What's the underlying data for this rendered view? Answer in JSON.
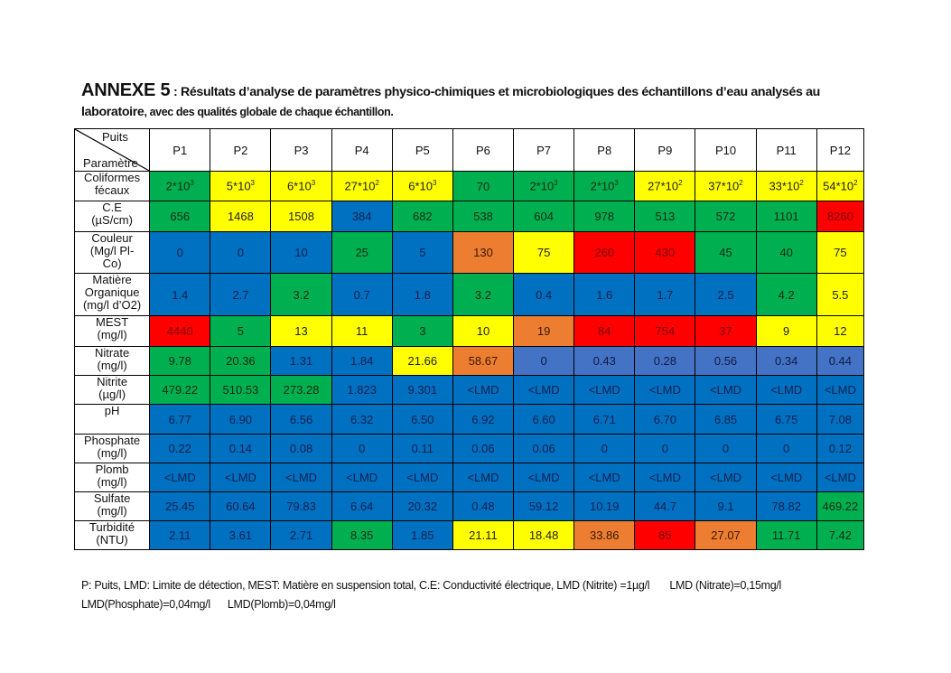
{
  "title": {
    "annex": "ANNEXE 5",
    "text": " : Résultats d’analyse de paramètres physico-chimiques et microbiologiques des échantillons d’eau analysés au",
    "line2_bold": "laboratoire",
    "line2_rest": ", avec des qualités globale de chaque échantillon."
  },
  "table": {
    "corner_top": "Puits",
    "corner_bottom": "Paramètre",
    "columns": [
      "P1",
      "P2",
      "P3",
      "P4",
      "P5",
      "P6",
      "P7",
      "P8",
      "P9",
      "P10",
      "P11",
      "P12"
    ],
    "colors": {
      "g": "#00b050",
      "y": "#ffff00",
      "b": "#0070c0",
      "l": "#4472c4",
      "r": "#ff0000",
      "o": "#ed7d31"
    },
    "rows": [
      {
        "label": "Coliformes\nfécaux",
        "h": 33,
        "cells": [
          {
            "v": "2*10",
            "sup": "3",
            "c": "g"
          },
          {
            "v": "5*10",
            "sup": "3",
            "c": "y"
          },
          {
            "v": "6*10",
            "sup": "3",
            "c": "y"
          },
          {
            "v": "27*10",
            "sup": "2",
            "c": "y"
          },
          {
            "v": "6*10",
            "sup": "3",
            "c": "y"
          },
          {
            "v": "70",
            "c": "g"
          },
          {
            "v": "2*10",
            "sup": "3",
            "c": "g"
          },
          {
            "v": "2*10",
            "sup": "3",
            "c": "g"
          },
          {
            "v": "27*10",
            "sup": "2",
            "c": "y"
          },
          {
            "v": "37*10",
            "sup": "2",
            "c": "y"
          },
          {
            "v": "33*10",
            "sup": "2",
            "c": "y"
          },
          {
            "v": "54*10",
            "sup": "2",
            "c": "y"
          }
        ]
      },
      {
        "label": "C.E\n(µS/cm)",
        "h": 34,
        "cells": [
          {
            "v": "656",
            "c": "g"
          },
          {
            "v": "1468",
            "c": "y"
          },
          {
            "v": "1508",
            "c": "y"
          },
          {
            "v": "384",
            "c": "b"
          },
          {
            "v": "682",
            "c": "g"
          },
          {
            "v": "538",
            "c": "g"
          },
          {
            "v": "604",
            "c": "g"
          },
          {
            "v": "978",
            "c": "g"
          },
          {
            "v": "513",
            "c": "g"
          },
          {
            "v": "572",
            "c": "g"
          },
          {
            "v": "1101",
            "c": "g"
          },
          {
            "v": "8260",
            "c": "r"
          }
        ]
      },
      {
        "label": "Couleur\n(Mg/l  Pl-\nCo)",
        "h": 46,
        "cells": [
          {
            "v": "0",
            "c": "b"
          },
          {
            "v": "0",
            "c": "b"
          },
          {
            "v": "10",
            "c": "b"
          },
          {
            "v": "25",
            "c": "g"
          },
          {
            "v": "5",
            "c": "b"
          },
          {
            "v": "130",
            "c": "o"
          },
          {
            "v": "75",
            "c": "y"
          },
          {
            "v": "260",
            "c": "r"
          },
          {
            "v": "430",
            "c": "r"
          },
          {
            "v": "45",
            "c": "g"
          },
          {
            "v": "40",
            "c": "g"
          },
          {
            "v": "75",
            "c": "y"
          }
        ]
      },
      {
        "label": "Matière\nOrganique\n(mg/l d’O2)",
        "h": 47,
        "cells": [
          {
            "v": "1.4",
            "c": "b"
          },
          {
            "v": "2.7",
            "c": "b"
          },
          {
            "v": "3.2",
            "c": "g"
          },
          {
            "v": "0.7",
            "c": "b"
          },
          {
            "v": "1.8",
            "c": "b"
          },
          {
            "v": "3.2",
            "c": "g"
          },
          {
            "v": "0.4",
            "c": "b"
          },
          {
            "v": "1.6",
            "c": "b"
          },
          {
            "v": "1.7",
            "c": "b"
          },
          {
            "v": "2.5",
            "c": "b"
          },
          {
            "v": "4.2",
            "c": "g"
          },
          {
            "v": "5.5",
            "c": "y"
          }
        ]
      },
      {
        "label": "MEST\n(mg/l)",
        "h": 34,
        "cells": [
          {
            "v": "4440",
            "c": "r"
          },
          {
            "v": "5",
            "c": "g"
          },
          {
            "v": "13",
            "c": "y"
          },
          {
            "v": "11",
            "c": "y"
          },
          {
            "v": "3",
            "c": "g"
          },
          {
            "v": "10",
            "c": "y"
          },
          {
            "v": "19",
            "c": "o"
          },
          {
            "v": "84",
            "c": "r"
          },
          {
            "v": "754",
            "c": "r"
          },
          {
            "v": "37",
            "c": "r"
          },
          {
            "v": "9",
            "c": "y"
          },
          {
            "v": "12",
            "c": "y"
          }
        ]
      },
      {
        "label": "Nitrate\n(mg/l)",
        "h": 32,
        "cells": [
          {
            "v": "9.78",
            "c": "g"
          },
          {
            "v": "20.36",
            "c": "g"
          },
          {
            "v": "1.31",
            "c": "b"
          },
          {
            "v": "1.84",
            "c": "b"
          },
          {
            "v": "21.66",
            "c": "y"
          },
          {
            "v": "58.67",
            "c": "o"
          },
          {
            "v": "0",
            "c": "l"
          },
          {
            "v": "0.43",
            "c": "l"
          },
          {
            "v": "0.28",
            "c": "l"
          },
          {
            "v": "0.56",
            "c": "l"
          },
          {
            "v": "0.34",
            "c": "l"
          },
          {
            "v": "0.44",
            "c": "l"
          }
        ]
      },
      {
        "label": "Nitrite\n(µg/l)",
        "h": 32,
        "cells": [
          {
            "v": "479.22",
            "c": "g"
          },
          {
            "v": "510.53",
            "c": "g"
          },
          {
            "v": "273.28",
            "c": "g"
          },
          {
            "v": "1.823",
            "c": "b"
          },
          {
            "v": "9.301",
            "c": "b"
          },
          {
            "v": "<LMD",
            "c": "b"
          },
          {
            "v": "<LMD",
            "c": "b"
          },
          {
            "v": "<LMD",
            "c": "b"
          },
          {
            "v": "<LMD",
            "c": "b"
          },
          {
            "v": "<LMD",
            "c": "b"
          },
          {
            "v": "<LMD",
            "c": "b"
          },
          {
            "v": "<LMD",
            "c": "b"
          }
        ]
      },
      {
        "label": "pH",
        "h": 33,
        "cells": [
          {
            "v": "6.77",
            "c": "b"
          },
          {
            "v": "6.90",
            "c": "b"
          },
          {
            "v": "6.56",
            "c": "b"
          },
          {
            "v": "6.32",
            "c": "b"
          },
          {
            "v": "6.50",
            "c": "b"
          },
          {
            "v": "6.92",
            "c": "b"
          },
          {
            "v": "6.60",
            "c": "b"
          },
          {
            "v": "6.71",
            "c": "b"
          },
          {
            "v": "6.70",
            "c": "b"
          },
          {
            "v": "6.85",
            "c": "b"
          },
          {
            "v": "6.75",
            "c": "b"
          },
          {
            "v": "7.08",
            "c": "b"
          }
        ]
      },
      {
        "label": "Phosphate\n(mg/l)",
        "h": 32,
        "cells": [
          {
            "v": "0.22",
            "c": "b"
          },
          {
            "v": "0.14",
            "c": "b"
          },
          {
            "v": "0.08",
            "c": "b"
          },
          {
            "v": "0",
            "c": "b"
          },
          {
            "v": "0.11",
            "c": "b"
          },
          {
            "v": "0.06",
            "c": "b"
          },
          {
            "v": "0.06",
            "c": "b"
          },
          {
            "v": "0",
            "c": "b"
          },
          {
            "v": "0",
            "c": "b"
          },
          {
            "v": "0",
            "c": "b"
          },
          {
            "v": "0",
            "c": "b"
          },
          {
            "v": "0.12",
            "c": "b"
          }
        ]
      },
      {
        "label": "Plomb\n(mg/l)",
        "h": 32,
        "cells": [
          {
            "v": "<LMD",
            "c": "b"
          },
          {
            "v": "<LMD",
            "c": "b"
          },
          {
            "v": "<LMD",
            "c": "b"
          },
          {
            "v": "<LMD",
            "c": "b"
          },
          {
            "v": "<LMD",
            "c": "b"
          },
          {
            "v": "<LMD",
            "c": "b"
          },
          {
            "v": "<LMD",
            "c": "b"
          },
          {
            "v": "<LMD",
            "c": "b"
          },
          {
            "v": "<LMD",
            "c": "b"
          },
          {
            "v": "<LMD",
            "c": "b"
          },
          {
            "v": "<LMD",
            "c": "b"
          },
          {
            "v": "<LMD",
            "c": "b"
          }
        ]
      },
      {
        "label": "Sulfate\n(mg/l)",
        "h": 32,
        "cells": [
          {
            "v": "25.45",
            "c": "b"
          },
          {
            "v": "60.64",
            "c": "b"
          },
          {
            "v": "79.83",
            "c": "b"
          },
          {
            "v": "6.64",
            "c": "b"
          },
          {
            "v": "20.32",
            "c": "b"
          },
          {
            "v": "0.48",
            "c": "b"
          },
          {
            "v": "59.12",
            "c": "b"
          },
          {
            "v": "10.19",
            "c": "b"
          },
          {
            "v": "44.7",
            "c": "b"
          },
          {
            "v": "9.1",
            "c": "b"
          },
          {
            "v": "78.82",
            "c": "b"
          },
          {
            "v": "469.22",
            "c": "g"
          }
        ]
      },
      {
        "label": "Turbidité\n(NTU)",
        "h": 32,
        "cells": [
          {
            "v": "2.11",
            "c": "b"
          },
          {
            "v": "3.61",
            "c": "b"
          },
          {
            "v": "2.71",
            "c": "b"
          },
          {
            "v": "8.35",
            "c": "g"
          },
          {
            "v": "1.85",
            "c": "b"
          },
          {
            "v": "21.11",
            "c": "y"
          },
          {
            "v": "18.48",
            "c": "y"
          },
          {
            "v": "33.86",
            "c": "o"
          },
          {
            "v": "85",
            "c": "r"
          },
          {
            "v": "27.07",
            "c": "o"
          },
          {
            "v": "11.71",
            "c": "g"
          },
          {
            "v": "7.42",
            "c": "g"
          }
        ]
      }
    ]
  },
  "footnote": {
    "line1": "P: Puits, LMD: Limite de détection, MEST: Matière en suspension total, C.E: Conductivité électrique, LMD (Nitrite) =1µg/l       LMD (Nitrate)=0,15mg/l",
    "line2": "LMD(Phosphate)=0,04mg/l      LMD(Plomb)=0,04mg/l"
  }
}
